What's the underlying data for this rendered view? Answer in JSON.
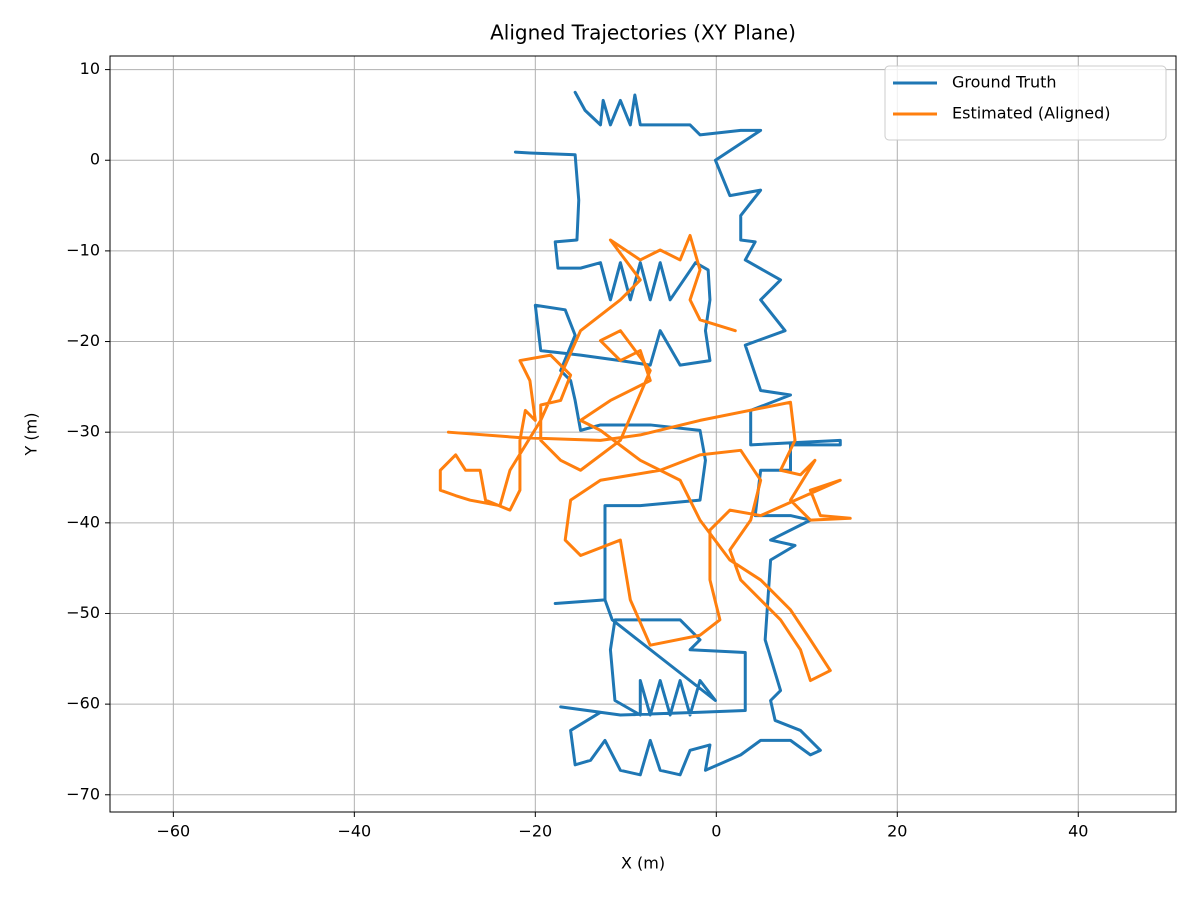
{
  "chart_data": {
    "type": "line",
    "title": "Aligned Trajectories (XY Plane)",
    "xlabel": "X (m)",
    "ylabel": "Y (m)",
    "xlim": [
      -67,
      50.8
    ],
    "ylim": [
      -71.9,
      11.5
    ],
    "xticks": [
      {
        "value": -60,
        "label": "−60"
      },
      {
        "value": -40,
        "label": "−40"
      },
      {
        "value": -20,
        "label": "−20"
      },
      0,
      20,
      40
    ],
    "yticks": [
      {
        "value": -70,
        "label": "−70"
      },
      {
        "value": -60,
        "label": "−60"
      },
      {
        "value": -50,
        "label": "−50"
      },
      {
        "value": -40,
        "label": "−40"
      },
      {
        "value": -30,
        "label": "−30"
      },
      {
        "value": -20,
        "label": "−20"
      },
      {
        "value": -10,
        "label": "−10"
      },
      0,
      10
    ],
    "grid": true,
    "legend": "upper right",
    "series": [
      {
        "name": "Ground Truth",
        "color": "#1f77b4",
        "x": [
          -15.6,
          -14.5,
          -12.8,
          -12.5,
          -11.7,
          -10.6,
          -9.5,
          -9.0,
          -8.4,
          -2.9,
          -1.8,
          2.7,
          4.9,
          -0.1,
          1.5,
          4.9,
          2.7,
          2.7,
          4.3,
          3.2,
          7.1,
          4.9,
          7.6,
          3.2,
          4.9,
          8.2,
          3.8,
          3.8,
          13.7,
          13.7,
          8.2,
          8.2,
          4.9,
          4.3,
          8.2,
          10.4,
          6.0,
          8.7,
          6.0,
          5.4,
          7.1,
          6.0,
          6.5,
          9.3,
          11.5,
          10.4,
          8.2,
          4.9,
          2.7,
          -1.2,
          -0.7,
          -2.9,
          -4.0,
          -6.2,
          -7.3,
          -8.4,
          -10.6,
          -12.3,
          -13.9,
          -15.6,
          -16.1,
          -12.8,
          -17.2,
          -10.6,
          -1.8,
          3.2,
          3.2,
          -2.9,
          -1.8,
          -4.0,
          -11.2,
          -11.7,
          -11.2,
          -8.4,
          -8.4,
          -7.3,
          -6.2,
          -5.1,
          -4.0,
          -2.9,
          -1.8,
          -0.1,
          -11.5,
          -12.3,
          -17.8,
          -12.3,
          -12.3,
          -8.4,
          -1.8,
          -1.2,
          -1.8,
          -7.3,
          -12.8,
          -15.0,
          -15.6,
          -16.1,
          -17.2,
          -15.6,
          -16.7,
          -20.0,
          -19.4,
          -15.0,
          -10.6,
          -7.3,
          -6.2,
          -4.0,
          -0.7,
          -1.2,
          -0.7,
          -0.9,
          -2.3,
          -5.1,
          -6.2,
          -7.3,
          -8.4,
          -9.5,
          -10.6,
          -11.7,
          -12.8,
          -15.0,
          -17.5,
          -17.8,
          -15.4,
          -15.2,
          -15.6,
          -20.6,
          -22.2
        ],
        "values": [
          7.5,
          5.5,
          3.9,
          6.6,
          3.9,
          6.6,
          3.9,
          7.2,
          3.9,
          3.9,
          2.8,
          3.3,
          3.3,
          0,
          -3.9,
          -3.3,
          -6.1,
          -8.8,
          -9.0,
          -11.0,
          -13.2,
          -15.4,
          -18.8,
          -20.4,
          -25.4,
          -25.9,
          -27.6,
          -31.4,
          -30.9,
          -31.4,
          -31.4,
          -34.2,
          -34.2,
          -39.2,
          -39.2,
          -39.7,
          -41.9,
          -42.5,
          -44.1,
          -52.9,
          -58.5,
          -59.6,
          -61.8,
          -62.9,
          -65.1,
          -65.6,
          -64.0,
          -64.0,
          -65.6,
          -67.3,
          -64.5,
          -65.1,
          -67.8,
          -67.3,
          -64.0,
          -67.8,
          -67.3,
          -64.0,
          -66.2,
          -66.7,
          -62.9,
          -60.9,
          -60.3,
          -61.2,
          -60.9,
          -60.7,
          -54.3,
          -54.0,
          -52.9,
          -50.7,
          -50.7,
          -54.0,
          -59.6,
          -61.2,
          -57.4,
          -61.2,
          -57.4,
          -61.2,
          -57.4,
          -61.2,
          -57.4,
          -59.6,
          -50.7,
          -48.5,
          -48.9,
          -48.5,
          -38.1,
          -38.1,
          -37.5,
          -33.1,
          -29.8,
          -29.2,
          -29.2,
          -29.8,
          -26.5,
          -24.3,
          -23.2,
          -19.3,
          -16.5,
          -16.0,
          -21.0,
          -21.5,
          -22.1,
          -22.6,
          -18.8,
          -22.6,
          -22.1,
          -18.8,
          -15.4,
          -12.1,
          -11.3,
          -15.4,
          -11.3,
          -15.4,
          -11.3,
          -15.4,
          -11.3,
          -15.4,
          -11.3,
          -11.9,
          -11.9,
          -9.0,
          -8.8,
          -4.4,
          0.6,
          0.8,
          0.9
        ]
      },
      {
        "name": "Estimated (Aligned)",
        "color": "#ff7f0e",
        "x": [
          -29.6,
          -21.7,
          -12.8,
          -8.4,
          -1.8,
          8.2,
          8.7,
          7.1,
          9.3,
          10.9,
          8.2,
          10.4,
          14.8,
          11.5,
          10.4,
          13.7,
          4.9,
          1.5,
          -0.7,
          -0.7,
          0.4,
          -1.8,
          -7.3,
          -9.5,
          -10.6,
          -15.0,
          -16.7,
          -16.1,
          -12.8,
          -6.2,
          -1.8,
          2.7,
          4.9,
          3.8,
          1.5,
          2.7,
          7.1,
          9.3,
          10.4,
          12.6,
          10.4,
          8.2,
          4.9,
          1.5,
          -1.8,
          -4.0,
          -8.4,
          -12.8,
          -15.0,
          -11.7,
          -7.3,
          -8.4,
          -10.6,
          -12.8,
          -10.6,
          -7.3,
          -10.6,
          -15.0,
          -17.2,
          -19.4,
          -19.4,
          -17.2,
          -16.1,
          -18.3,
          -21.7,
          -20.6,
          -20.0,
          -21.1,
          -21.7,
          -21.7,
          -22.8,
          -25.5,
          -26.1,
          -27.7,
          -28.8,
          -30.5,
          -30.5,
          -28.8,
          -27.2,
          -23.9,
          -22.8,
          -19.4,
          -15.0,
          -10.6,
          -8.4,
          -11.7,
          -8.4,
          -6.2,
          -4.0,
          -2.9,
          -1.8,
          -2.9,
          -1.8,
          2.1
        ],
        "values": [
          -30.0,
          -30.6,
          -30.9,
          -30.3,
          -28.7,
          -26.7,
          -30.9,
          -34.2,
          -34.7,
          -33.1,
          -37.5,
          -39.7,
          -39.5,
          -39.2,
          -36.4,
          -35.3,
          -39.2,
          -38.6,
          -40.8,
          -46.3,
          -50.7,
          -52.4,
          -53.5,
          -48.5,
          -41.9,
          -43.6,
          -41.9,
          -37.5,
          -35.3,
          -34.2,
          -32.5,
          -32.0,
          -35.3,
          -39.7,
          -43.0,
          -46.3,
          -50.7,
          -54.0,
          -57.4,
          -56.3,
          -52.9,
          -49.6,
          -46.3,
          -44.1,
          -39.7,
          -35.3,
          -33.1,
          -29.8,
          -28.7,
          -26.5,
          -24.3,
          -21.0,
          -22.1,
          -19.9,
          -18.8,
          -23.2,
          -30.9,
          -34.2,
          -33.1,
          -30.9,
          -27.0,
          -26.5,
          -23.7,
          -21.5,
          -22.1,
          -24.3,
          -28.7,
          -27.6,
          -30.9,
          -36.4,
          -38.6,
          -37.5,
          -34.2,
          -34.2,
          -32.5,
          -34.2,
          -36.4,
          -37.0,
          -37.5,
          -38.1,
          -34.2,
          -28.7,
          -18.8,
          -15.4,
          -13.2,
          -8.8,
          -11.0,
          -9.9,
          -11.0,
          -8.3,
          -12.1,
          -15.4,
          -17.6,
          -18.8
        ]
      }
    ]
  }
}
